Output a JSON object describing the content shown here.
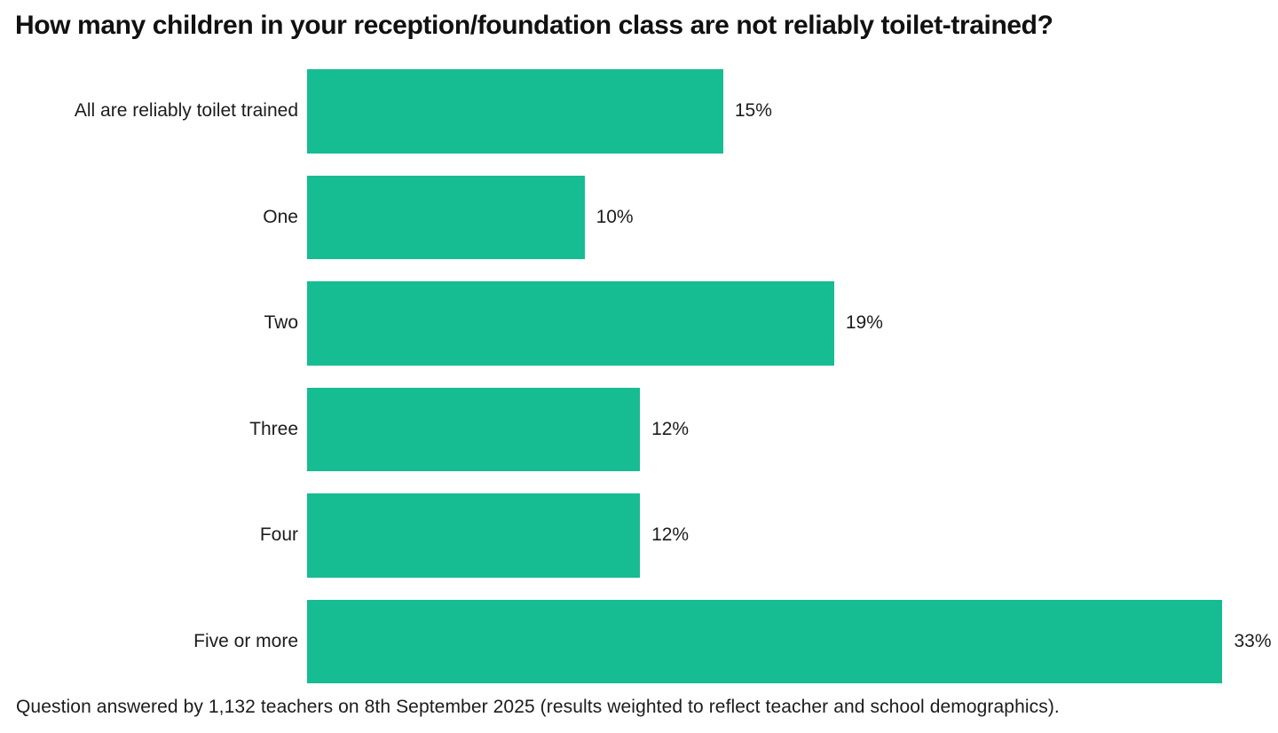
{
  "colors": {
    "bar": "#16bc92",
    "title_text": "#111111",
    "body_text": "#1c1c1c",
    "background": "#ffffff"
  },
  "header": {
    "title": "How many children in your reception/foundation class are not reliably toilet-trained?"
  },
  "footer": {
    "note": "Question answered by 1,132 teachers on 8th September 2025 (results weighted to reflect teacher and school demographics)."
  },
  "chart_data": {
    "type": "bar",
    "orientation": "horizontal",
    "title": "How many children in your reception/foundation class are not reliably toilet-trained?",
    "categories": [
      "All are reliably toilet trained",
      "One",
      "Two",
      "Three",
      "Four",
      "Five or more"
    ],
    "values": [
      15,
      10,
      19,
      12,
      12,
      33
    ],
    "value_labels": [
      "15%",
      "10%",
      "19%",
      "12%",
      "12%",
      "33%"
    ],
    "unit": "%",
    "xlabel": "",
    "ylabel": "",
    "xlim": [
      0,
      35
    ],
    "grid": false,
    "legend": "none",
    "bar_color": "#16bc92",
    "annotation": "Question answered by 1,132 teachers on 8th September 2025 (results weighted to reflect teacher and school demographics)."
  }
}
